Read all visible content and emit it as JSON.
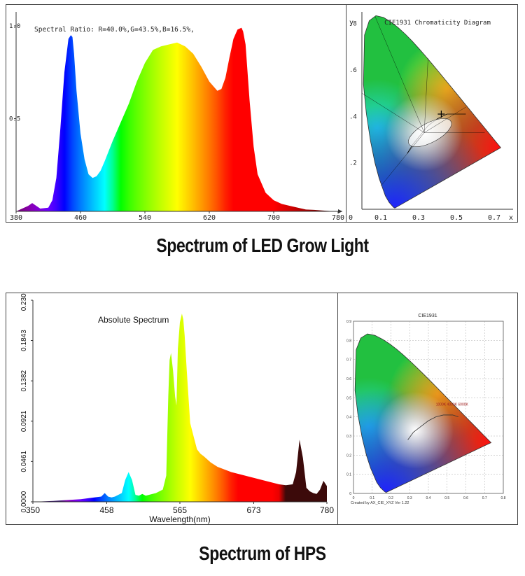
{
  "chart_data": [
    {
      "type": "area",
      "title": "Spectral Ratio:  R=40.0%,G=43.5%,B=16.5%,",
      "x_ticks": [
        "380",
        "460",
        "540",
        "620",
        "700",
        "780"
      ],
      "y_ticks": [
        "1.0",
        "0.5"
      ],
      "xlim": [
        380,
        780
      ],
      "ylim": [
        0,
        1.0
      ],
      "x": [
        380,
        385,
        390,
        395,
        400,
        405,
        410,
        420,
        425,
        430,
        435,
        440,
        445,
        448,
        450,
        452,
        455,
        460,
        465,
        470,
        475,
        480,
        485,
        490,
        500,
        510,
        520,
        530,
        540,
        550,
        560,
        570,
        580,
        585,
        590,
        600,
        610,
        620,
        630,
        635,
        640,
        645,
        650,
        655,
        660,
        662,
        665,
        670,
        675,
        680,
        690,
        700,
        710,
        720,
        730,
        740,
        750,
        760,
        770,
        780
      ],
      "y": [
        0.0,
        0.01,
        0.02,
        0.03,
        0.045,
        0.03,
        0.015,
        0.02,
        0.06,
        0.18,
        0.45,
        0.75,
        0.93,
        0.95,
        0.94,
        0.85,
        0.65,
        0.42,
        0.28,
        0.2,
        0.18,
        0.19,
        0.22,
        0.27,
        0.38,
        0.48,
        0.58,
        0.7,
        0.8,
        0.87,
        0.89,
        0.9,
        0.91,
        0.9,
        0.89,
        0.85,
        0.78,
        0.7,
        0.65,
        0.66,
        0.72,
        0.83,
        0.93,
        0.98,
        0.99,
        0.97,
        0.9,
        0.6,
        0.35,
        0.2,
        0.1,
        0.06,
        0.04,
        0.03,
        0.02,
        0.01,
        0.008,
        0.005,
        0.002,
        0.0
      ]
    },
    {
      "type": "scatter",
      "title": "CIE1931 Chromaticity Diagram",
      "ylabel": "y",
      "xlabel": "x",
      "x_ticks": [
        "0",
        "0.1",
        "0.3",
        "0.5",
        "0.7"
      ],
      "y_ticks": [
        ".8",
        ".6",
        ".4",
        ".2"
      ]
    },
    {
      "type": "area",
      "title": "Absolute Spectrum",
      "xlabel": "Wavelength(nm)",
      "x_ticks": [
        "350",
        "458",
        "565",
        "673",
        "780"
      ],
      "y_ticks": [
        "0.0000",
        "0.0461",
        "0.0921",
        "0.1382",
        "0.1843",
        "0.2303"
      ],
      "xlim": [
        350,
        780
      ],
      "ylim": [
        0,
        0.2303
      ],
      "x": [
        350,
        380,
        400,
        420,
        440,
        450,
        455,
        460,
        465,
        470,
        480,
        485,
        490,
        495,
        500,
        505,
        510,
        515,
        520,
        530,
        540,
        545,
        548,
        550,
        552,
        555,
        558,
        560,
        562,
        565,
        568,
        570,
        572,
        575,
        580,
        585,
        590,
        595,
        600,
        610,
        620,
        640,
        660,
        680,
        700,
        710,
        720,
        730,
        735,
        740,
        745,
        750,
        755,
        760,
        765,
        770,
        775,
        780
      ],
      "y": [
        0.0,
        0.001,
        0.002,
        0.003,
        0.005,
        0.006,
        0.01,
        0.006,
        0.005,
        0.006,
        0.01,
        0.025,
        0.034,
        0.025,
        0.008,
        0.007,
        0.009,
        0.007,
        0.008,
        0.01,
        0.014,
        0.03,
        0.12,
        0.162,
        0.17,
        0.15,
        0.12,
        0.11,
        0.175,
        0.205,
        0.215,
        0.208,
        0.19,
        0.15,
        0.09,
        0.075,
        0.06,
        0.055,
        0.052,
        0.045,
        0.04,
        0.034,
        0.03,
        0.026,
        0.022,
        0.02,
        0.019,
        0.02,
        0.034,
        0.071,
        0.05,
        0.016,
        0.012,
        0.01,
        0.009,
        0.014,
        0.024,
        0.018
      ]
    },
    {
      "type": "scatter",
      "title": "CIE1931",
      "footer": "Created by AX_CIE_XYZ Ver 1.22",
      "annotation": "1000K 4000K 6000K",
      "x_ticks": [
        "0",
        "0.1",
        "0.2",
        "0.3",
        "0.4",
        "0.5",
        "0.6",
        "0.7",
        "0.8"
      ],
      "y_ticks": [
        "0.9",
        "0.8",
        "0.7",
        "0.6",
        "0.5",
        "0.4",
        "0.3",
        "0.2",
        "0.1",
        "0"
      ]
    }
  ],
  "captions": {
    "led": "Spectrum of LED Grow Light",
    "hps": "Spectrum of HPS"
  }
}
